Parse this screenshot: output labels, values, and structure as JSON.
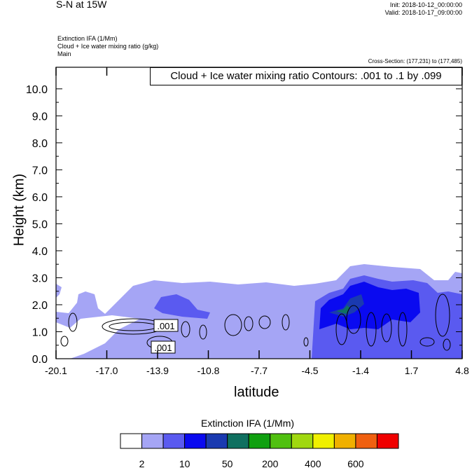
{
  "header": {
    "title": "S-N at 15W",
    "init": "Init: 2018-10-12_00:00:00",
    "valid": "Valid: 2018-10-17_09:00:00",
    "field1": "Extinction IFA   (1/Mm)",
    "field2": "Cloud + Ice water mixing ratio   (g/kg)",
    "field3": "Main",
    "cross_section": "Cross-Section: (177,231) to (177,485)"
  },
  "chart_data": {
    "type": "heatmap",
    "xlabel": "latitude",
    "ylabel": "Height (km)",
    "x_ticks": [
      "-20.1",
      "-17.0",
      "-13.9",
      "-10.8",
      "-7.7",
      "-4.5",
      "-1.4",
      "1.7",
      "4.8"
    ],
    "y_ticks": [
      "0.0",
      "1.0",
      "2.0",
      "3.0",
      "4.0",
      "5.0",
      "6.0",
      "7.0",
      "8.0",
      "9.0",
      "10.0"
    ],
    "ylim": [
      0,
      10.8
    ],
    "xlim": [
      -20.1,
      4.8
    ],
    "contour_title": "Cloud + Ice water mixing ratio Contours: .001 to .1 by .099",
    "contour_labels": [
      ".001",
      ".001"
    ],
    "colorbar": {
      "title": "Extinction IFA  (1/Mm)",
      "tick_labels": [
        "2",
        "10",
        "50",
        "200",
        "400",
        "600"
      ],
      "colors": [
        "#ffffff",
        "#a5a5f5",
        "#5a5af0",
        "#0a0af0",
        "#1a3ab0",
        "#107060",
        "#10a010",
        "#50c010",
        "#a0d810",
        "#f0f000",
        "#f0b000",
        "#f06010",
        "#f00000"
      ]
    }
  }
}
